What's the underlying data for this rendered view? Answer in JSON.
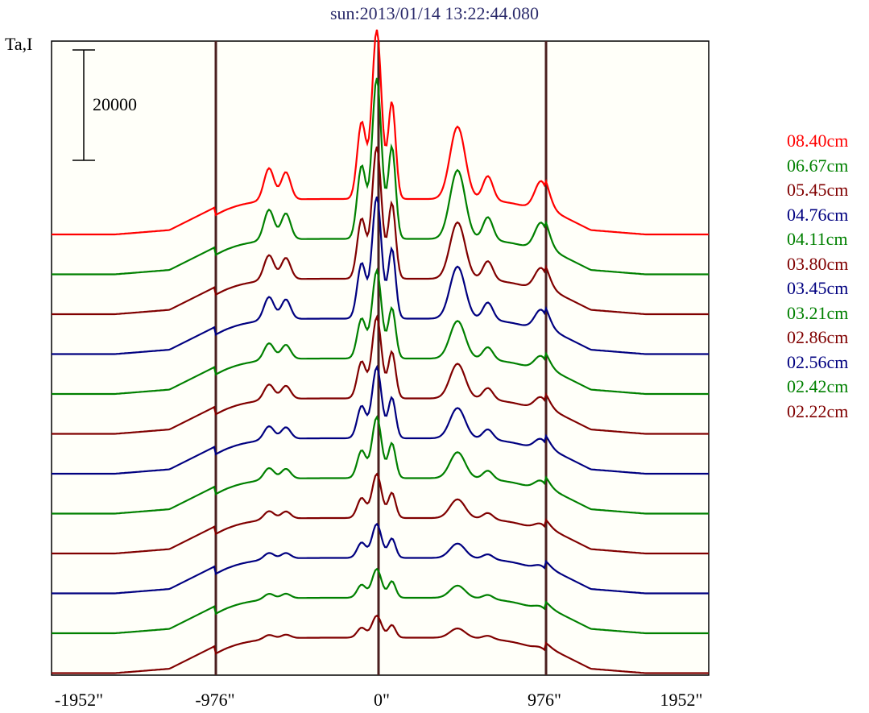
{
  "title": "sun:2013/01/14 13:22:44.080",
  "ylabel": "Ta,I",
  "scale_bar_label": "20000",
  "xticks": [
    "-1952\"",
    "-976\"",
    "0\"",
    "976\"",
    "1952\""
  ],
  "legend": [
    {
      "label": "08.40cm",
      "color": "#ff0000"
    },
    {
      "label": "06.67cm",
      "color": "#008000"
    },
    {
      "label": "05.45cm",
      "color": "#800000"
    },
    {
      "label": "04.76cm",
      "color": "#000080"
    },
    {
      "label": "04.11cm",
      "color": "#008000"
    },
    {
      "label": "03.80cm",
      "color": "#800000"
    },
    {
      "label": "03.45cm",
      "color": "#000080"
    },
    {
      "label": "03.21cm",
      "color": "#008000"
    },
    {
      "label": "02.86cm",
      "color": "#800000"
    },
    {
      "label": "02.56cm",
      "color": "#000080"
    },
    {
      "label": "02.42cm",
      "color": "#008000"
    },
    {
      "label": "02.22cm",
      "color": "#800000"
    }
  ],
  "chart_data": {
    "type": "line",
    "title": "sun:2013/01/14 13:22:44.080",
    "ylabel": "Ta,I",
    "xlim": [
      -1952,
      1952
    ],
    "vertical_lines": [
      -976,
      0,
      976
    ],
    "scale_bar": 20000,
    "series": [
      {
        "name": "08.40cm",
        "color": "#ff0000",
        "baseline": 0,
        "peak_scale": 1.0
      },
      {
        "name": "06.67cm",
        "color": "#008000",
        "baseline": 1,
        "peak_scale": 0.95
      },
      {
        "name": "05.45cm",
        "color": "#800000",
        "baseline": 2,
        "peak_scale": 0.78
      },
      {
        "name": "04.76cm",
        "color": "#000080",
        "baseline": 3,
        "peak_scale": 0.72
      },
      {
        "name": "04.11cm",
        "color": "#008000",
        "baseline": 4,
        "peak_scale": 0.52
      },
      {
        "name": "03.80cm",
        "color": "#800000",
        "baseline": 5,
        "peak_scale": 0.48
      },
      {
        "name": "03.45cm",
        "color": "#000080",
        "baseline": 6,
        "peak_scale": 0.42
      },
      {
        "name": "03.21cm",
        "color": "#008000",
        "baseline": 7,
        "peak_scale": 0.36
      },
      {
        "name": "02.86cm",
        "color": "#800000",
        "baseline": 8,
        "peak_scale": 0.26
      },
      {
        "name": "02.56cm",
        "color": "#000080",
        "baseline": 9,
        "peak_scale": 0.2
      },
      {
        "name": "02.42cm",
        "color": "#008000",
        "baseline": 10,
        "peak_scale": 0.17
      },
      {
        "name": "02.22cm",
        "color": "#800000",
        "baseline": 11,
        "peak_scale": 0.13
      }
    ]
  }
}
